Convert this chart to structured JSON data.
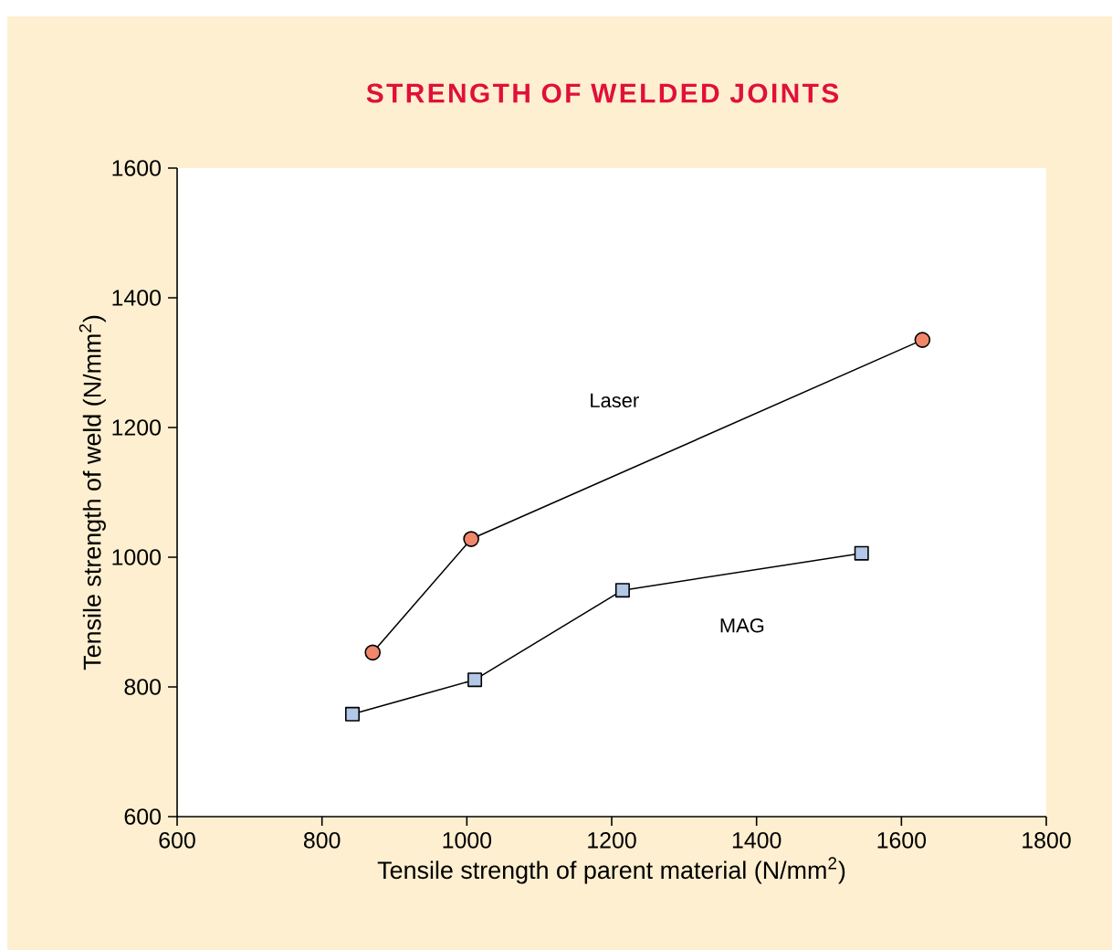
{
  "chart_data": {
    "type": "line",
    "title": "STRENGTH OF WELDED JOINTS",
    "xlabel": "Tensile strength of parent material (N/mm$^{2}$)",
    "ylabel": "Tensile strength of weld (N/mm$^{2}$)",
    "xlim": [
      600,
      1800
    ],
    "xticks": [
      600,
      800,
      1000,
      1200,
      1400,
      1600,
      1800
    ],
    "ylim": [
      600,
      1600
    ],
    "yticks": [
      600,
      800,
      1000,
      1200,
      1400,
      1600
    ],
    "grid": false,
    "legend": false,
    "series": [
      {
        "name": "Laser",
        "color": "#f0876a",
        "marker": "circle",
        "x": [
          870,
          1006,
          1629
        ],
        "values": [
          853,
          1028,
          1335
        ]
      },
      {
        "name": "MAG",
        "color": "#b3c8e8",
        "marker": "square",
        "x": [
          842,
          1011,
          1215,
          1545
        ],
        "values": [
          758,
          811,
          949,
          1006
        ]
      }
    ]
  }
}
